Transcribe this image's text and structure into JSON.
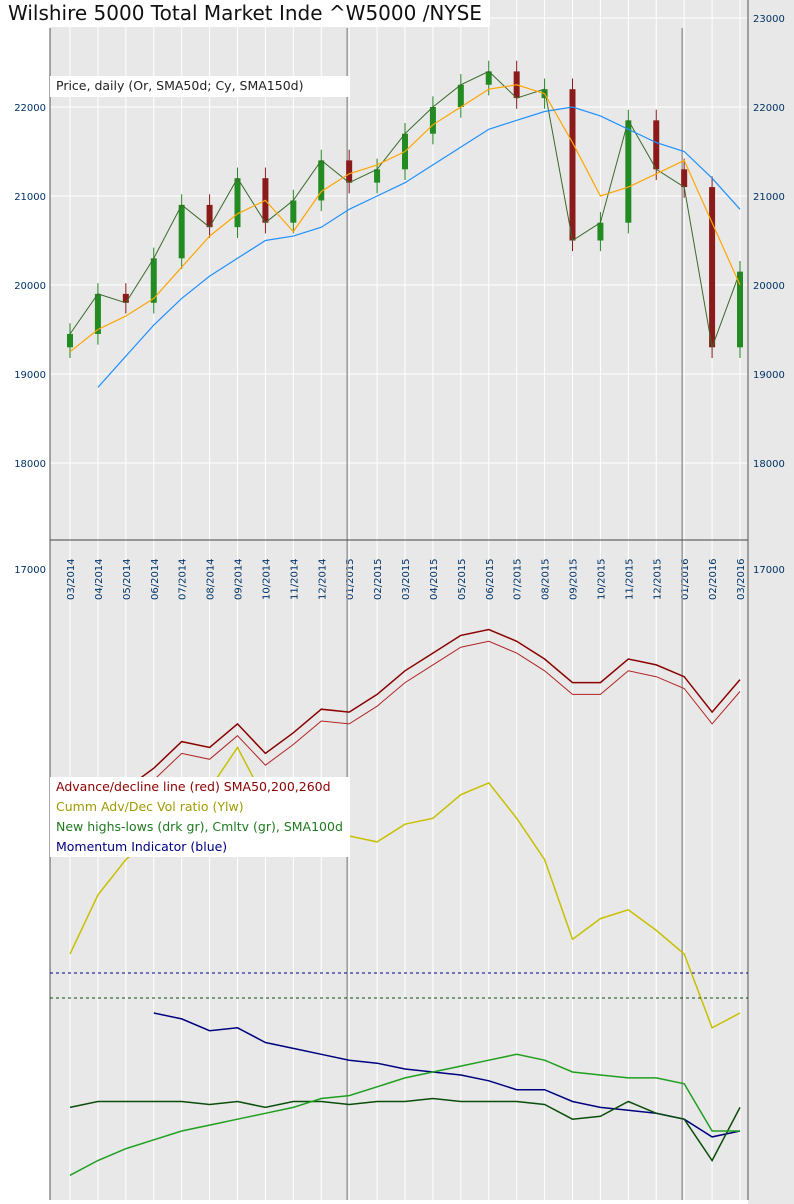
{
  "title": "Wilshire 5000 Total Market Inde ^W5000 /NYSE",
  "colors": {
    "background_plot": "#e8e8e8",
    "grid": "#ffffff",
    "axis_text": "#003366",
    "price_up": "#228b22",
    "price_down": "#8b1a1a",
    "sma50": "#ffa500",
    "sma150": "#1e90ff",
    "ad_line": "#8b0000",
    "ad_sma": "#b22222",
    "vol_ratio": "#c8c000",
    "nh_nl": "#0b4d0b",
    "nh_cumul": "#1f9f1f",
    "momentum": "#000080"
  },
  "chart_data": [
    {
      "type": "line",
      "title": "Wilshire 5000 Total Market Inde ^W5000 /NYSE",
      "legend": [
        "Price, daily (Or, SMA50d; Cy, SMA150d)"
      ],
      "legend_placement": "top-left",
      "y_ticks": [
        18000,
        19000,
        20000,
        21000,
        22000,
        23000
      ],
      "ylim": [
        17000,
        23000
      ],
      "grid": true,
      "x": [
        "03/2014",
        "04/2014",
        "05/2014",
        "06/2014",
        "07/2014",
        "08/2014",
        "09/2014",
        "10/2014",
        "11/2014",
        "12/2014",
        "01/2015",
        "02/2015",
        "03/2015",
        "04/2015",
        "05/2015",
        "06/2015",
        "07/2015",
        "08/2015",
        "09/2015",
        "10/2015",
        "11/2015",
        "12/2015",
        "01/2016",
        "02/2016",
        "03/2016"
      ],
      "series": [
        {
          "name": "Price",
          "values": [
            19450,
            19900,
            19800,
            20300,
            20900,
            20650,
            21200,
            20700,
            20950,
            21400,
            21150,
            21300,
            21700,
            22000,
            22250,
            22400,
            22100,
            22200,
            20500,
            20700,
            21850,
            21300,
            21100,
            19300,
            20150
          ]
        },
        {
          "name": "SMA50d",
          "values": [
            19250,
            19500,
            19650,
            19850,
            20200,
            20550,
            20800,
            20950,
            20600,
            21050,
            21250,
            21350,
            21500,
            21800,
            22000,
            22200,
            22250,
            22150,
            21600,
            21000,
            21100,
            21250,
            21400,
            20700,
            20000
          ]
        },
        {
          "name": "SMA150d",
          "values": [
            null,
            18850,
            19200,
            19550,
            19850,
            20100,
            20300,
            20500,
            20550,
            20650,
            20850,
            21000,
            21150,
            21350,
            21550,
            21750,
            21850,
            21950,
            22000,
            21900,
            21750,
            21600,
            21500,
            21200,
            20850
          ]
        }
      ]
    },
    {
      "type": "line",
      "legend": [
        "Advance/decline line (red) SMA50,200,260d",
        "Cumm Adv/Dec Vol ratio (Ylw)",
        "New highs-lows (drk gr), Cmltv (gr), SMA100d",
        "Momentum Indicator (blue)"
      ],
      "legend_placement": "center-left",
      "y_ticks": [
        17000
      ],
      "grid": true,
      "x": [
        "03/2014",
        "04/2014",
        "05/2014",
        "06/2014",
        "07/2014",
        "08/2014",
        "09/2014",
        "10/2014",
        "11/2014",
        "12/2014",
        "01/2015",
        "02/2015",
        "03/2015",
        "04/2015",
        "05/2015",
        "06/2015",
        "07/2015",
        "08/2015",
        "09/2015",
        "10/2015",
        "11/2015",
        "12/2015",
        "01/2016",
        "02/2016",
        "03/2016"
      ],
      "series": [
        {
          "name": "Advance/decline line",
          "values": [
            10,
            18,
            26,
            33,
            42,
            40,
            48,
            38,
            45,
            53,
            52,
            58,
            66,
            72,
            78,
            80,
            76,
            70,
            62,
            62,
            70,
            68,
            64,
            52,
            63
          ]
        },
        {
          "name": "Cumm Adv/Dec Vol ratio",
          "values": [
            -30,
            -10,
            2,
            10,
            20,
            26,
            40,
            22,
            15,
            12,
            10,
            8,
            14,
            16,
            24,
            28,
            16,
            2,
            -25,
            -18,
            -15,
            -22,
            -30,
            -55,
            -50
          ]
        },
        {
          "name": "Momentum Indicator",
          "values": [
            null,
            null,
            null,
            -50,
            -52,
            -56,
            -55,
            -60,
            -62,
            -64,
            -66,
            -67,
            -69,
            -70,
            -71,
            -73,
            -76,
            -76,
            -80,
            -82,
            -83,
            -84,
            -86,
            -92,
            -90
          ]
        },
        {
          "name": "New highs-lows",
          "values": [
            -82,
            -80,
            -80,
            -80,
            -80,
            -81,
            -80,
            -82,
            -80,
            -80,
            -81,
            -80,
            -80,
            -79,
            -80,
            -80,
            -80,
            -81,
            -86,
            -85,
            -80,
            -84,
            -86,
            -100,
            -82
          ]
        },
        {
          "name": "Cumulative new highs-lows",
          "values": [
            -105,
            -100,
            -96,
            -93,
            -90,
            -88,
            -86,
            -84,
            -82,
            -79,
            -78,
            -75,
            -72,
            -70,
            -68,
            -66,
            -64,
            -66,
            -70,
            -71,
            -72,
            -72,
            -74,
            -90,
            -90
          ]
        }
      ]
    }
  ]
}
